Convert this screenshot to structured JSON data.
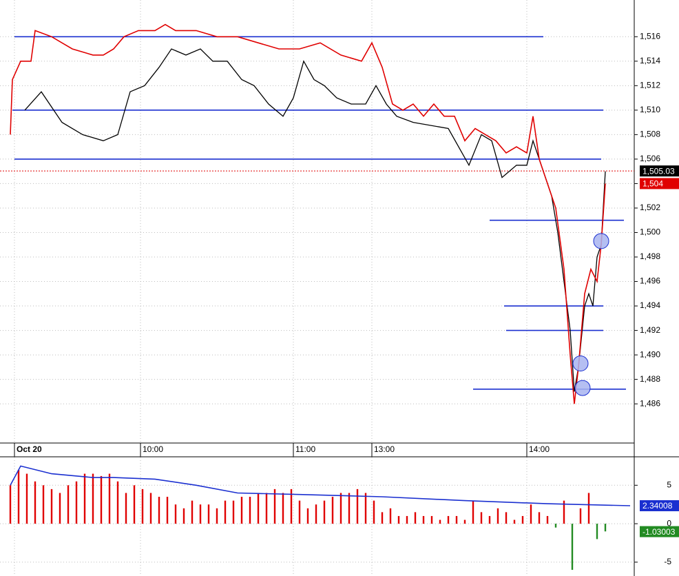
{
  "chart_data": [
    {
      "type": "line",
      "xlim": [
        0,
        302
      ],
      "ylim": [
        1482.8,
        1519
      ],
      "grid": true,
      "xticks": [
        {
          "value": 2,
          "label": "Oct 20"
        },
        {
          "value": 63,
          "label": "10:00"
        },
        {
          "value": 137,
          "label": "11:00"
        },
        {
          "value": 175,
          "label": "13:00"
        },
        {
          "value": 250,
          "label": "14:00"
        }
      ],
      "yticks": [
        {
          "value": 1486,
          "label": "1,486"
        },
        {
          "value": 1488,
          "label": "1,488"
        },
        {
          "value": 1490,
          "label": "1,490"
        },
        {
          "value": 1492,
          "label": "1,492"
        },
        {
          "value": 1494,
          "label": "1,494"
        },
        {
          "value": 1496,
          "label": "1,496"
        },
        {
          "value": 1498,
          "label": "1,498"
        },
        {
          "value": 1500,
          "label": "1,500"
        },
        {
          "value": 1502,
          "label": "1,502"
        },
        {
          "value": 1504,
          "label": "1,504"
        },
        {
          "value": 1506,
          "label": "1,506"
        },
        {
          "value": 1508,
          "label": "1,508"
        },
        {
          "value": 1510,
          "label": "1,510"
        },
        {
          "value": 1512,
          "label": "1,512"
        },
        {
          "value": 1514,
          "label": "1,514"
        },
        {
          "value": 1516,
          "label": "1,516"
        }
      ],
      "series": [
        {
          "color": "#000000",
          "x": [
            7,
            15,
            25,
            35,
            45,
            52,
            58,
            65,
            72,
            78,
            85,
            92,
            98,
            105,
            112,
            118,
            125,
            132,
            137,
            142,
            147,
            152,
            158,
            165,
            172,
            177,
            182,
            187,
            195,
            212,
            222,
            228,
            233,
            238,
            245,
            250,
            253,
            257,
            262,
            265,
            268,
            271,
            273,
            275,
            278,
            280,
            282,
            284,
            286,
            288
          ],
          "values": [
            1510,
            1511.5,
            1509,
            1508,
            1507.5,
            1508,
            1511.5,
            1512,
            1513.5,
            1515,
            1514.5,
            1515,
            1514,
            1514,
            1512.5,
            1512,
            1510.5,
            1509.5,
            1511,
            1514,
            1512.5,
            1512,
            1511,
            1510.5,
            1510.5,
            1512,
            1510.5,
            1509.5,
            1509,
            1508.5,
            1505.5,
            1508,
            1507.5,
            1504.5,
            1505.5,
            1505.5,
            1507.5,
            1505.5,
            1503,
            1500,
            1496,
            1492,
            1487,
            1489,
            1494,
            1495,
            1494,
            1498,
            1499,
            1505
          ]
        },
        {
          "color": "#e00000",
          "x": [
            0,
            1,
            5,
            10,
            12,
            20,
            25,
            30,
            40,
            45,
            50,
            55,
            62,
            70,
            75,
            80,
            90,
            100,
            110,
            120,
            130,
            140,
            150,
            160,
            170,
            175,
            180,
            185,
            190,
            195,
            200,
            205,
            210,
            215,
            220,
            225,
            230,
            235,
            240,
            245,
            250,
            253,
            256,
            260,
            264,
            268,
            271,
            273,
            275,
            278,
            281,
            284,
            286,
            288
          ],
          "values": [
            1508,
            1512.5,
            1514,
            1514,
            1516.5,
            1516,
            1515.5,
            1515,
            1514.5,
            1514.5,
            1515,
            1516,
            1516.5,
            1516.5,
            1517,
            1516.5,
            1516.5,
            1516,
            1516,
            1515.5,
            1515,
            1515,
            1515.5,
            1514.5,
            1514,
            1515.5,
            1513.5,
            1510.5,
            1510,
            1510.5,
            1509.5,
            1510.5,
            1509.5,
            1509.5,
            1507.5,
            1508.5,
            1508,
            1507.5,
            1506.5,
            1507,
            1506.5,
            1509.5,
            1506,
            1504,
            1502,
            1497,
            1490,
            1486,
            1489,
            1495,
            1497,
            1496,
            1499,
            1504
          ]
        }
      ],
      "levels": [
        {
          "value": 1516,
          "x": [
            2,
            258
          ]
        },
        {
          "value": 1510,
          "x": [
            1,
            287
          ]
        },
        {
          "value": 1506,
          "x": [
            2,
            286
          ]
        },
        {
          "value": 1501,
          "x": [
            232,
            297
          ]
        },
        {
          "value": 1494,
          "x": [
            239,
            287
          ]
        },
        {
          "value": 1492,
          "x": [
            240,
            287
          ]
        },
        {
          "value": 1487.2,
          "x": [
            224,
            298
          ]
        }
      ],
      "markers": [
        {
          "x": 276,
          "value": 1489.3
        },
        {
          "x": 277,
          "value": 1487.3
        },
        {
          "x": 286,
          "value": 1499.3
        }
      ],
      "price_tags": [
        {
          "value": 1505.03,
          "label": "1,505.03",
          "color": "#000000"
        },
        {
          "value": 1504,
          "label": "1,504",
          "color": "#e00000"
        }
      ]
    },
    {
      "type": "bar",
      "xlim": [
        0,
        302
      ],
      "ylim": [
        -6.8,
        8.7
      ],
      "yticks": [
        -5,
        0,
        5
      ],
      "colors": {
        "up": "#e00000",
        "down": "#228b22"
      },
      "x": [
        0,
        4,
        8,
        12,
        16,
        20,
        24,
        28,
        32,
        36,
        40,
        44,
        48,
        52,
        56,
        60,
        64,
        68,
        72,
        76,
        80,
        84,
        88,
        92,
        96,
        100,
        104,
        108,
        112,
        116,
        120,
        124,
        128,
        132,
        136,
        140,
        144,
        148,
        152,
        156,
        160,
        164,
        168,
        172,
        176,
        180,
        184,
        188,
        192,
        196,
        200,
        204,
        208,
        212,
        216,
        220,
        224,
        228,
        232,
        236,
        240,
        244,
        248,
        252,
        256,
        260,
        264,
        268,
        272,
        276,
        280,
        284,
        288
      ],
      "values": [
        5,
        7,
        6.5,
        5.5,
        5,
        4.5,
        4,
        5,
        5.5,
        6.5,
        6.5,
        6.2,
        6.5,
        5.5,
        4,
        5,
        4.5,
        4,
        3.5,
        3.5,
        2.5,
        2,
        3,
        2.5,
        2.5,
        2,
        3,
        3,
        3.5,
        3.5,
        4,
        4,
        4.5,
        4,
        4.5,
        3,
        2,
        2.5,
        3,
        3.5,
        4,
        4,
        4.5,
        4,
        3,
        1.5,
        2,
        1,
        1,
        1.5,
        1,
        1,
        0.5,
        1,
        1,
        0.5,
        3,
        1.5,
        1,
        2,
        1.5,
        0.5,
        1,
        2.5,
        1.5,
        1,
        -0.5,
        3,
        -6,
        2,
        4,
        -2,
        -1
      ],
      "line": {
        "color": "#1a2fd0",
        "x": [
          0,
          5,
          20,
          40,
          50,
          70,
          90,
          110,
          140,
          180,
          220,
          260,
          300
        ],
        "values": [
          5,
          7.5,
          6.5,
          6,
          6,
          5.8,
          5,
          4,
          3.8,
          3.5,
          3,
          2.6,
          2.34
        ]
      },
      "price_tags": [
        {
          "value": 2.34008,
          "label": "2.34008",
          "color": "#1a2fd0"
        },
        {
          "value": -1.03003,
          "label": "-1.03003",
          "color": "#228b22"
        }
      ]
    }
  ]
}
